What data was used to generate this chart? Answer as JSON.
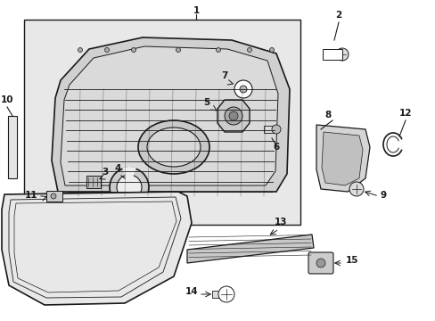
{
  "bg_color": "#ffffff",
  "fig_width": 4.89,
  "fig_height": 3.6,
  "dpi": 100,
  "black": "#1a1a1a",
  "light_gray": "#e8e8e8",
  "mid_gray": "#cccccc",
  "dark_gray": "#999999"
}
